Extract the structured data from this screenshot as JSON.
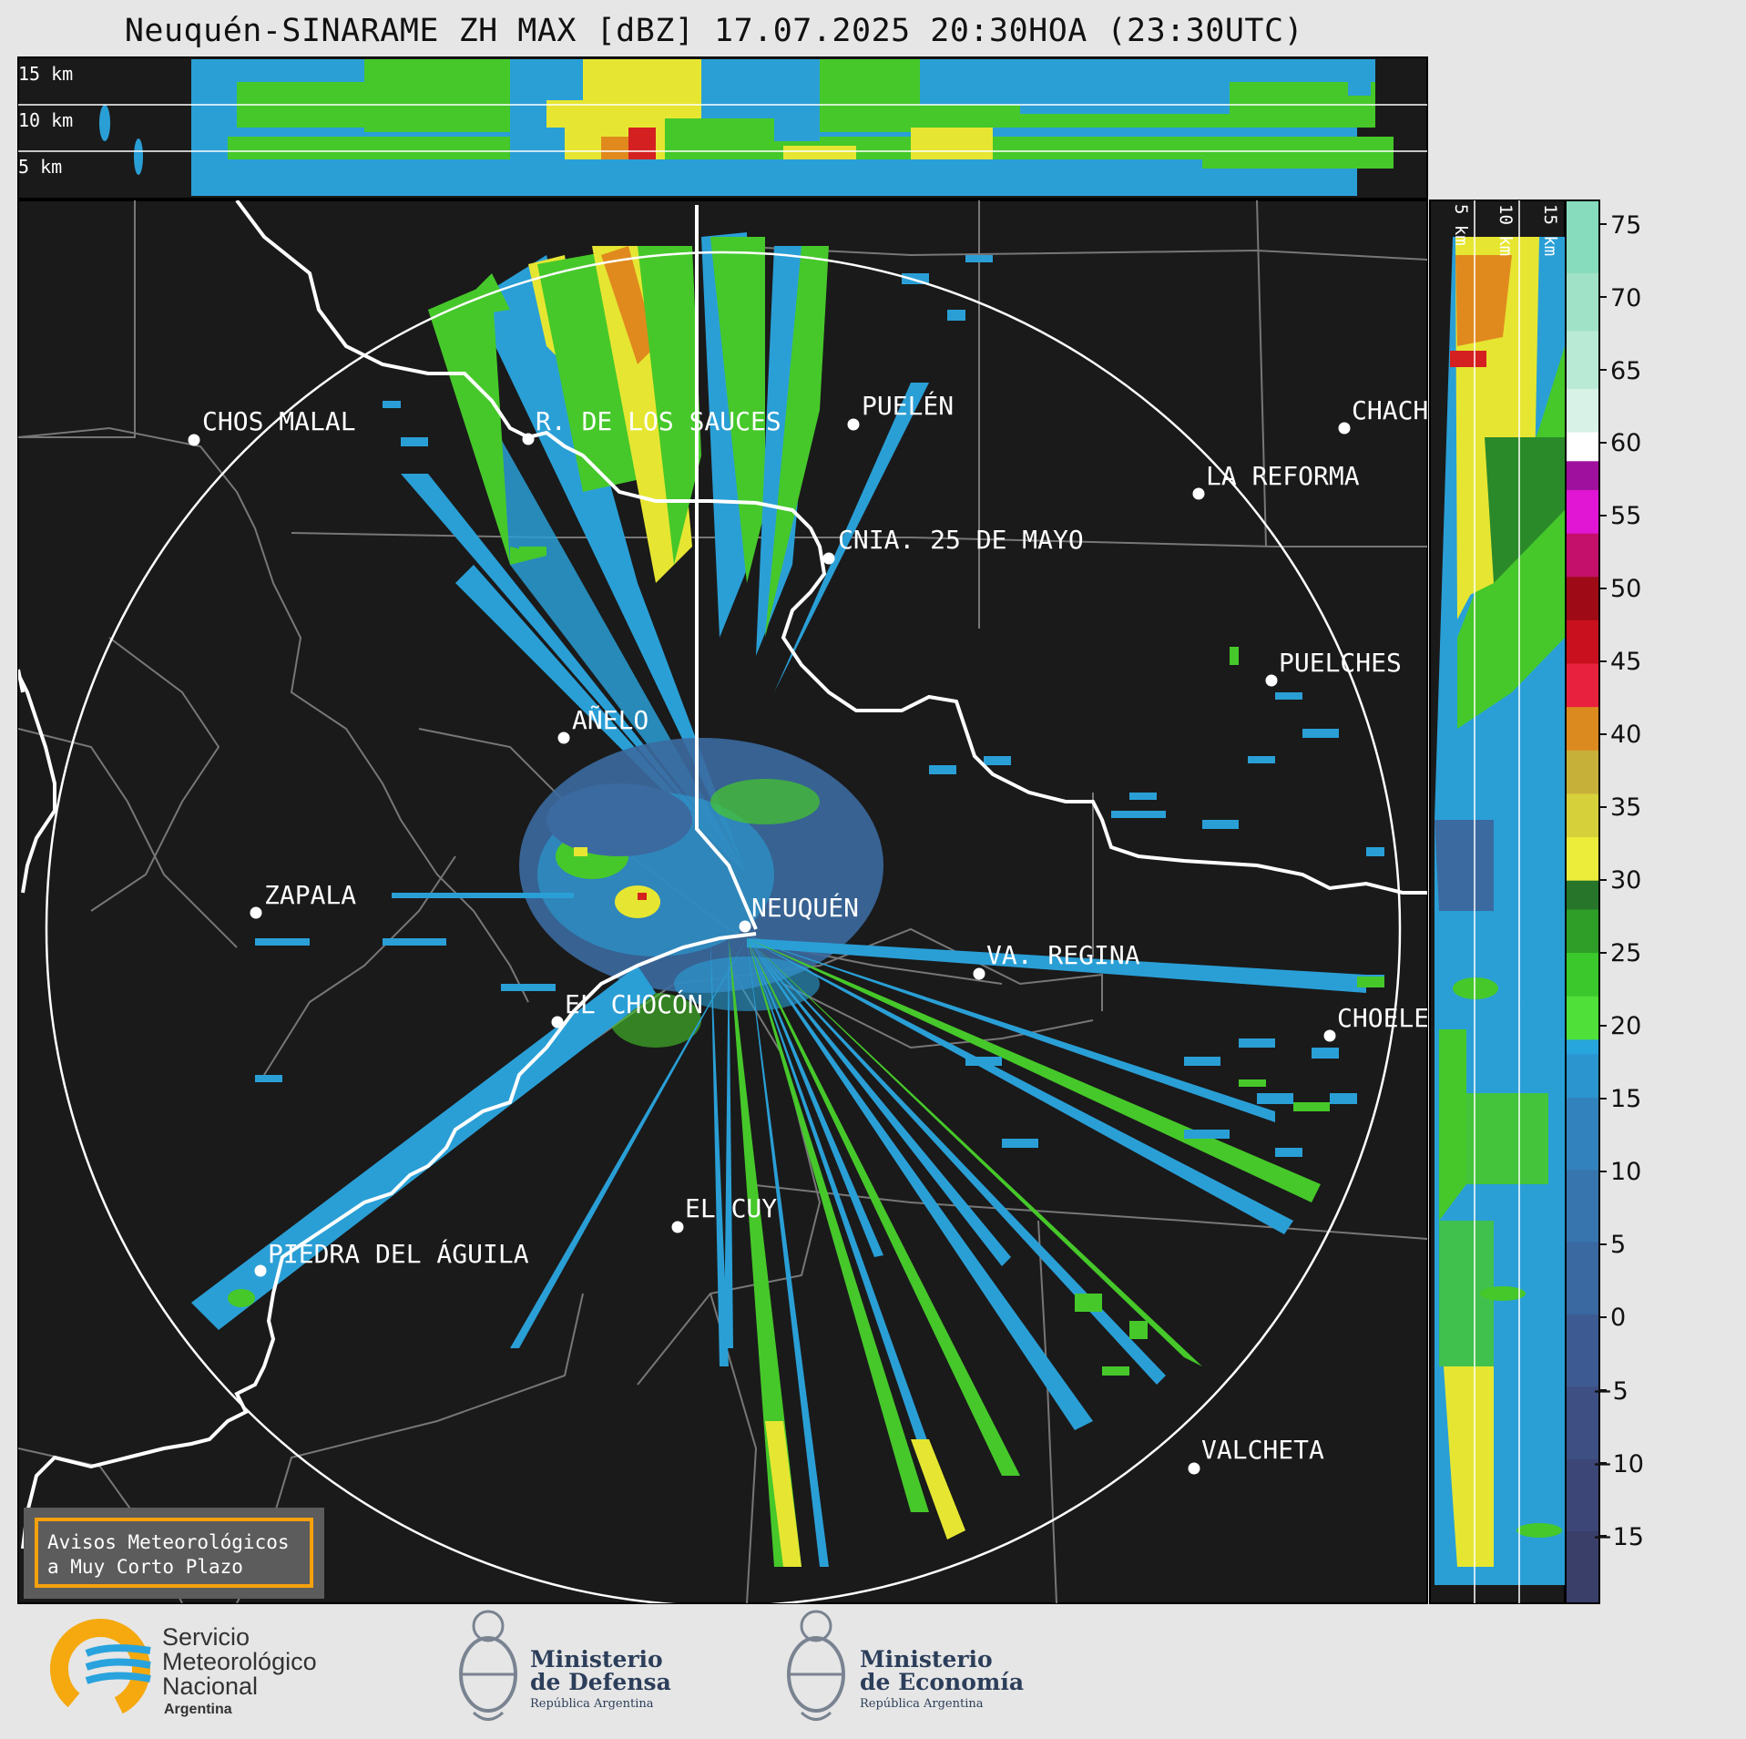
{
  "title": "Neuquén-SINARAME ZH MAX [dBZ] 17.07.2025 20:30HOA (23:30UTC)",
  "top_panel": {
    "height_labels": [
      "15 km",
      "10 km",
      "5 km"
    ]
  },
  "side_panel": {
    "height_labels": [
      "5 km",
      "10 km",
      "15 km"
    ]
  },
  "colorbar": {
    "ticks": [
      "75",
      "70",
      "65",
      "60",
      "55",
      "50",
      "45",
      "40",
      "35",
      "30",
      "25",
      "20",
      "15",
      "10",
      "5",
      "0",
      "−5",
      "−10",
      "−15"
    ],
    "range": [
      -20,
      77
    ]
  },
  "cities": [
    {
      "name": "CHOS MALAL"
    },
    {
      "name": "R. DE LOS SAUCES"
    },
    {
      "name": "PUELÉN"
    },
    {
      "name": "CHACH"
    },
    {
      "name": "LA REFORMA"
    },
    {
      "name": "CNIA. 25 DE MAYO"
    },
    {
      "name": "PUELCHES"
    },
    {
      "name": "AÑELO"
    },
    {
      "name": "ZAPALA"
    },
    {
      "name": "NEUQUÉN"
    },
    {
      "name": "VA. REGINA"
    },
    {
      "name": "EL CHOCÓN"
    },
    {
      "name": "CHOELE"
    },
    {
      "name": "EL CUY"
    },
    {
      "name": "PIEDRA DEL ÁGUILA"
    },
    {
      "name": "VALCHETA"
    }
  ],
  "warning_box": {
    "line1": "Avisos Meteorológicos",
    "line2": "a Muy Corto Plazo"
  },
  "logos": {
    "smn": {
      "line1": "Servicio",
      "line2": "Meteorológico",
      "line3": "Nacional",
      "line4": "Argentina"
    },
    "defensa": {
      "line1": "Ministerio",
      "line2": "de Defensa",
      "line3": "República Argentina"
    },
    "economia": {
      "line1": "Ministerio",
      "line2": "de Economía",
      "line3": "República Argentina"
    }
  }
}
